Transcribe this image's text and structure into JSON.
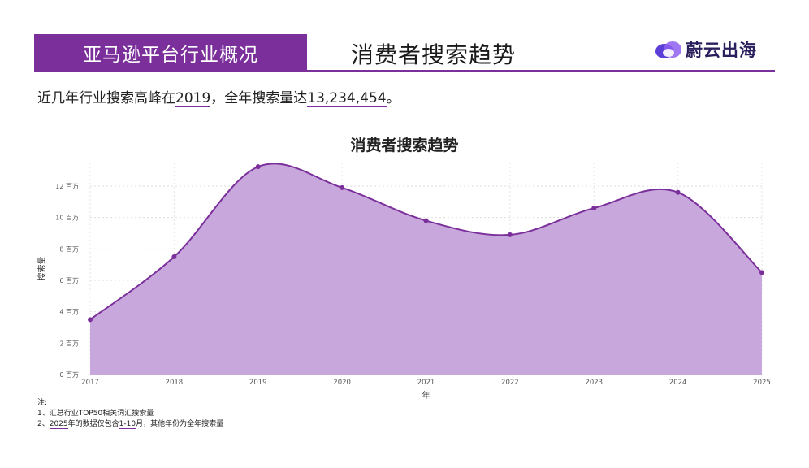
{
  "header": {
    "band_title": "亚马逊平台行业概况",
    "section_title": "消费者搜索趋势",
    "brand": "蔚云出海"
  },
  "summary": {
    "prefix": "近几年行业搜索高峰在",
    "peak_year": "2019",
    "middle": "，全年搜索量达",
    "peak_value": "13,234,454",
    "suffix": "。"
  },
  "chart_data": {
    "type": "area",
    "title": "消费者搜索趋势",
    "xlabel": "年",
    "ylabel": "搜索量",
    "x": [
      "2017",
      "2018",
      "2019",
      "2020",
      "2021",
      "2022",
      "2023",
      "2024",
      "2025"
    ],
    "values": [
      3500000,
      7500000,
      13234454,
      11900000,
      9800000,
      8900000,
      10600000,
      11600000,
      6500000
    ],
    "ylim": [
      0,
      13500000
    ],
    "yticks": [
      0,
      2,
      4,
      6,
      8,
      10,
      12
    ],
    "ytick_unit": "百万",
    "grid": true,
    "colors": {
      "line": "#7b2f9b",
      "fill": "#c8a8dc"
    }
  },
  "notes": {
    "heading": "注:",
    "line1": "1、汇总行业TOP50相关词汇搜索量",
    "line2_prefix": "2、",
    "line2_year": "2025",
    "line2_mid": "年的数据仅包含",
    "line2_range": "1-10",
    "line2_suffix": "月，其他年份为全年搜索量"
  },
  "colors": {
    "accent": "#7b2f9b"
  }
}
